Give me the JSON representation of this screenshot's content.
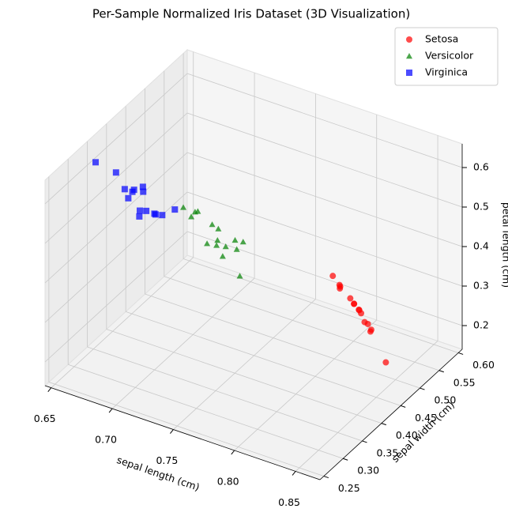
{
  "chart_data": {
    "type": "scatter3d",
    "title": "Per-Sample Normalized Iris Dataset (3D Visualization)",
    "xlabel": "sepal length (cm)",
    "ylabel": "sepal width (cm)",
    "zlabel": "petal length (cm)",
    "xlim": [
      0.645,
      0.87
    ],
    "ylim": [
      0.24,
      0.61
    ],
    "zlim": [
      0.14,
      0.66
    ],
    "xticks": [
      0.65,
      {
        "value": 0.7,
        "label": "0.70"
      },
      0.75,
      {
        "value": 0.8,
        "label": "0.80"
      },
      0.85
    ],
    "yticks": [
      0.25,
      {
        "value": 0.3,
        "label": "0.30"
      },
      0.35,
      {
        "value": 0.4,
        "label": "0.40"
      },
      0.45,
      {
        "value": 0.5,
        "label": "0.50"
      },
      0.55,
      {
        "value": 0.6,
        "label": "0.60"
      }
    ],
    "zticks": [
      0.2,
      0.3,
      0.4,
      0.5,
      0.6
    ],
    "grid": true,
    "legend": "upper right",
    "series": [
      {
        "name": "Setosa",
        "color": "#ff0000",
        "marker": "o",
        "x": [
          0.804,
          0.828,
          0.803,
          0.811,
          0.861,
          0.791,
          0.784,
          0.78,
          0.802,
          0.806,
          0.804,
          0.823,
          0.774,
          0.766,
          0.826
        ],
        "y": [
          0.552,
          0.507,
          0.56,
          0.559,
          0.44,
          0.57,
          0.566,
          0.577,
          0.545,
          0.532,
          0.551,
          0.514,
          0.597,
          0.604,
          0.496
        ],
        "z": [
          0.221,
          0.237,
          0.205,
          0.168,
          0.249,
          0.221,
          0.247,
          0.237,
          0.241,
          0.257,
          0.223,
          0.24,
          0.204,
          0.221,
          0.264
        ]
      },
      {
        "name": "Versicolor",
        "color": "#008000",
        "marker": "^",
        "x": [
          0.767,
          0.745,
          0.755,
          0.754,
          0.758,
          0.722,
          0.726,
          0.759,
          0.763,
          0.725,
          0.769,
          0.739,
          0.789,
          0.731,
          0.759
        ],
        "y": [
          0.351,
          0.373,
          0.339,
          0.315,
          0.327,
          0.355,
          0.38,
          0.372,
          0.335,
          0.376,
          0.308,
          0.376,
          0.289,
          0.347,
          0.393
        ],
        "z": [
          0.515,
          0.524,
          0.536,
          0.548,
          0.537,
          0.57,
          0.542,
          0.511,
          0.532,
          0.543,
          0.538,
          0.526,
          0.526,
          0.563,
          0.488
        ]
      },
      {
        "name": "Virginica",
        "color": "#0000ff",
        "marker": "s",
        "x": [
          0.654,
          0.691,
          0.715,
          0.693,
          0.686,
          0.71,
          0.671,
          0.714,
          0.714,
          0.692,
          0.716,
          0.716,
          0.717,
          0.693,
          0.693
        ],
        "y": [
          0.343,
          0.321,
          0.302,
          0.319,
          0.317,
          0.28,
          0.342,
          0.284,
          0.266,
          0.346,
          0.352,
          0.302,
          0.316,
          0.304,
          0.342
        ],
        "z": [
          0.623,
          0.607,
          0.594,
          0.616,
          0.612,
          0.616,
          0.616,
          0.616,
          0.618,
          0.586,
          0.561,
          0.593,
          0.58,
          0.608,
          0.603
        ]
      }
    ]
  }
}
